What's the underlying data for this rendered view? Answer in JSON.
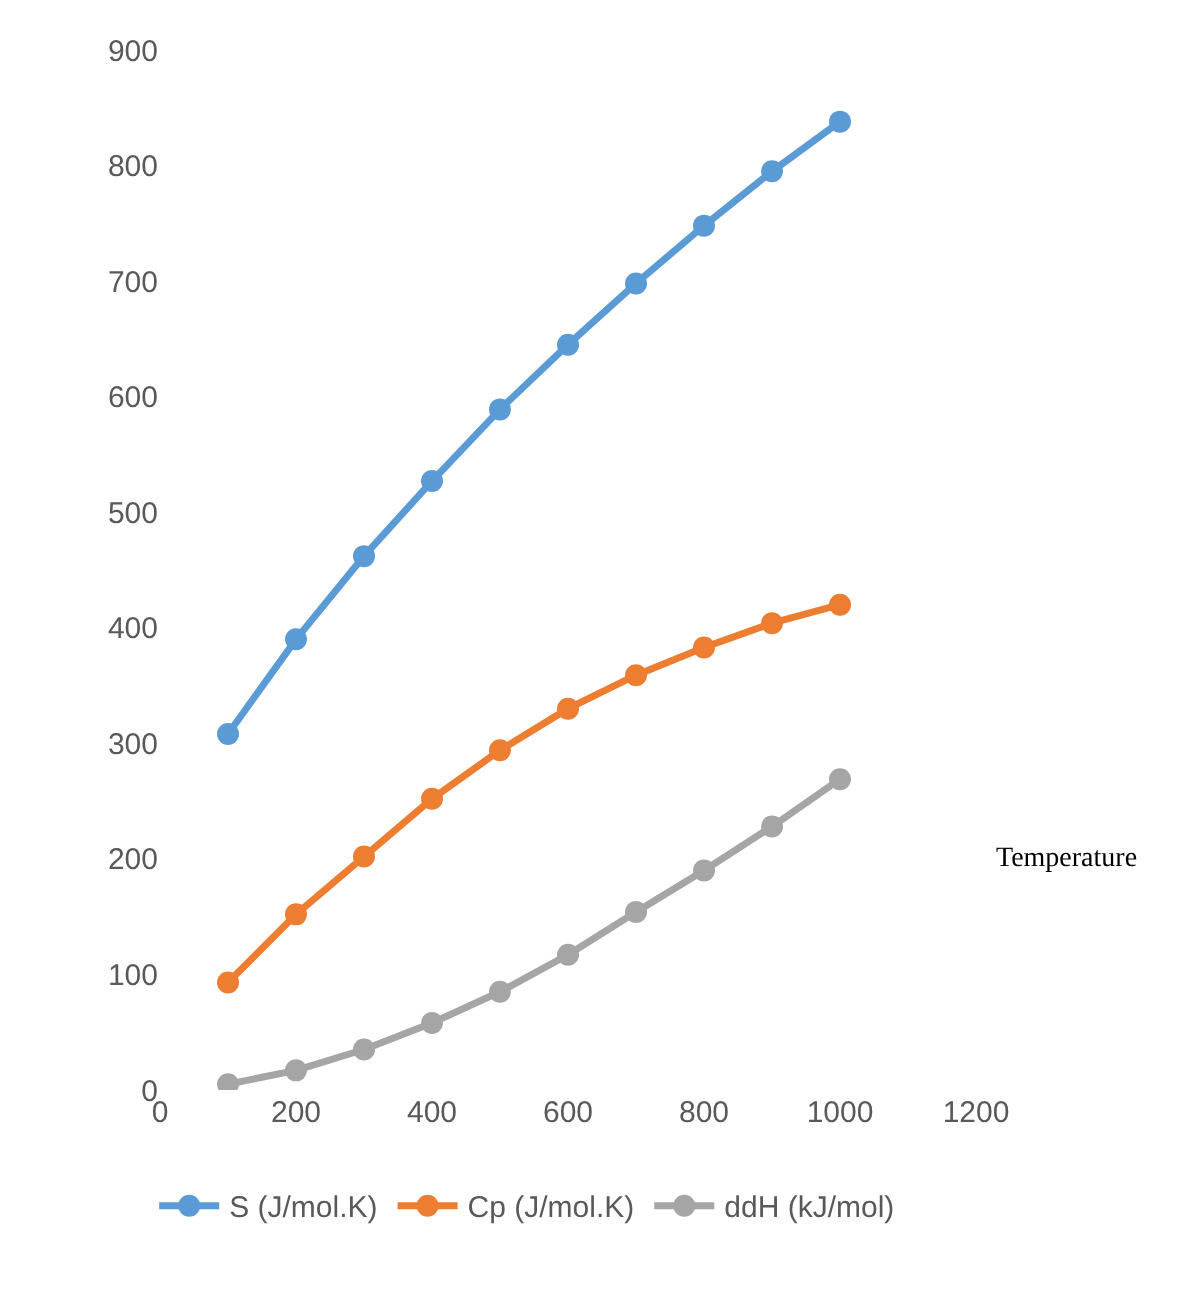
{
  "chart_data": {
    "type": "line",
    "xlabel": "Temperature",
    "x": [
      100,
      200,
      300,
      400,
      500,
      600,
      700,
      800,
      900,
      1000
    ],
    "series": [
      {
        "name": "S (J/mol.K)",
        "color": "#5b9bd5",
        "values": [
          308,
          390,
          462,
          527,
          589,
          645,
          698,
          748,
          795,
          838
        ]
      },
      {
        "name": "Cp (J/mol.K)",
        "color": "#ed7d31",
        "values": [
          93,
          152,
          202,
          252,
          294,
          330,
          359,
          383,
          404,
          420
        ]
      },
      {
        "name": "ddH (kJ/mol)",
        "color": "#a5a5a5",
        "values": [
          5,
          17,
          35,
          58,
          85,
          117,
          154,
          190,
          228,
          269
        ]
      }
    ],
    "xlim": [
      0,
      1200
    ],
    "xticks": [
      0,
      200,
      400,
      600,
      800,
      1000,
      1200
    ],
    "ylim": [
      0,
      900
    ],
    "yticks": [
      0,
      100,
      200,
      300,
      400,
      500,
      600,
      700,
      800,
      900
    ],
    "grid": false,
    "legend": "bottom",
    "marker": "circle",
    "line_style": "solid"
  }
}
